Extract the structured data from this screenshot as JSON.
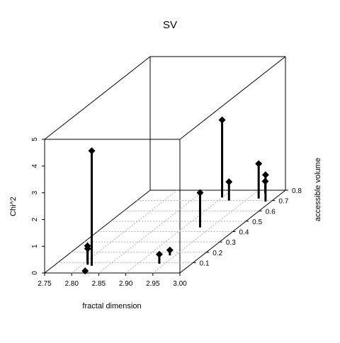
{
  "chart_data": {
    "type": "scatter",
    "title": "SV",
    "xlabel": "fractal dimension",
    "ylabel": "accessible volume",
    "zlabel": "Chi^2",
    "x_ticks": [
      "2.75",
      "2.80",
      "2.85",
      "2.90",
      "2.95",
      "3.00"
    ],
    "y_ticks": [
      "0.1",
      "0.2",
      "0.3",
      "0.4",
      "0.5",
      "0.6",
      "0.7",
      "0.8"
    ],
    "z_ticks": [
      "0",
      "1",
      "2",
      "3",
      "4",
      "5"
    ],
    "xlim": [
      2.75,
      3.0
    ],
    "ylim": [
      0.0,
      0.8
    ],
    "zlim": [
      0,
      5
    ],
    "grid": true,
    "type_h": true,
    "points": [
      {
        "x": 2.82,
        "y": 0.02,
        "z": 0.0
      },
      {
        "x": 2.81,
        "y": 0.08,
        "z": 0.6
      },
      {
        "x": 2.8,
        "y": 0.12,
        "z": 0.55
      },
      {
        "x": 2.82,
        "y": 0.07,
        "z": 4.3
      },
      {
        "x": 2.94,
        "y": 0.09,
        "z": 0.35
      },
      {
        "x": 2.94,
        "y": 0.17,
        "z": 0.2
      },
      {
        "x": 2.92,
        "y": 0.7,
        "z": 0.7
      },
      {
        "x": 2.93,
        "y": 0.44,
        "z": 1.3
      },
      {
        "x": 2.9,
        "y": 0.73,
        "z": 2.9
      },
      {
        "x": 2.97,
        "y": 0.77,
        "z": 0.45
      },
      {
        "x": 2.97,
        "y": 0.72,
        "z": 1.3
      },
      {
        "x": 2.99,
        "y": 0.69,
        "z": 1.0
      }
    ]
  }
}
